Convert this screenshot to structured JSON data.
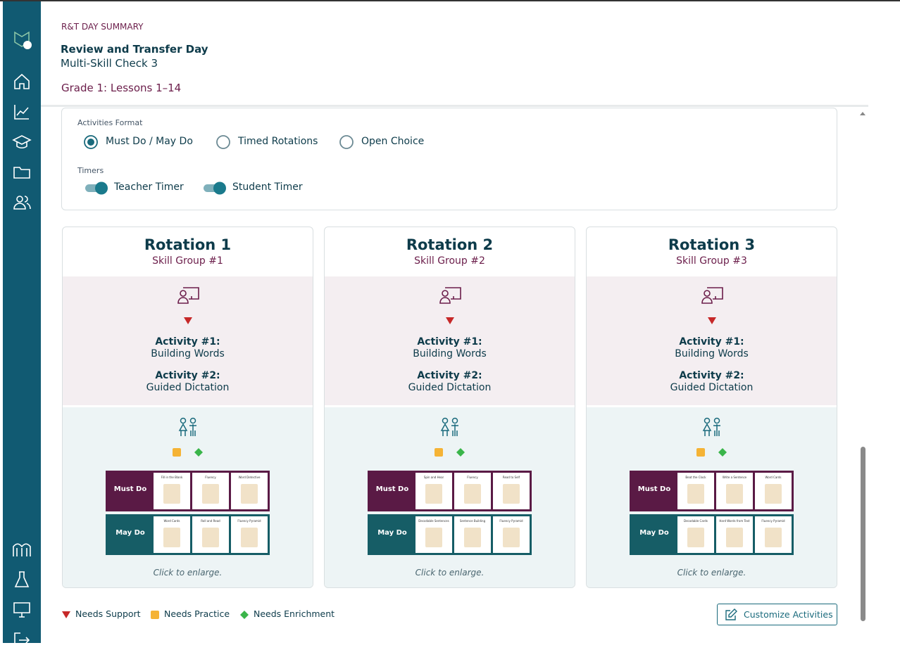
{
  "header": {
    "eyebrow": "R&T DAY SUMMARY",
    "title": "Review and Transfer Day",
    "subtitle": "Multi-Skill Check 3",
    "grade": "Grade 1: Lessons 1–14"
  },
  "activities_format": {
    "label": "Activities Format",
    "options": [
      {
        "label": "Must Do / May Do",
        "selected": true
      },
      {
        "label": "Timed Rotations",
        "selected": false
      },
      {
        "label": "Open Choice",
        "selected": false
      }
    ]
  },
  "timers": {
    "label": "Timers",
    "items": [
      {
        "label": "Teacher Timer",
        "on": true
      },
      {
        "label": "Student Timer",
        "on": true
      }
    ]
  },
  "rotations": [
    {
      "title": "Rotation 1",
      "group": "Skill Group #1",
      "activities": [
        {
          "label": "Activity #1:",
          "name": "Building Words"
        },
        {
          "label": "Activity #2:",
          "name": "Guided Dictation"
        }
      ],
      "must_do": {
        "label": "Must Do",
        "cards": [
          "Fill in the Blank",
          "Fluency",
          "Word Detective"
        ]
      },
      "may_do": {
        "label": "May Do",
        "cards": [
          "Word Cards",
          "Roll and Read",
          "Fluency Pyramid"
        ]
      },
      "enlarge": "Click to enlarge."
    },
    {
      "title": "Rotation 2",
      "group": "Skill Group #2",
      "activities": [
        {
          "label": "Activity #1:",
          "name": "Building Words"
        },
        {
          "label": "Activity #2:",
          "name": "Guided Dictation"
        }
      ],
      "must_do": {
        "label": "Must Do",
        "cards": [
          "Spin and Hear",
          "Fluency",
          "Read to Self"
        ]
      },
      "may_do": {
        "label": "May Do",
        "cards": [
          "Decodable Sentences",
          "Sentence Building",
          "Fluency Pyramid"
        ]
      },
      "enlarge": "Click to enlarge."
    },
    {
      "title": "Rotation 3",
      "group": "Skill Group #3",
      "activities": [
        {
          "label": "Activity #1:",
          "name": "Building Words"
        },
        {
          "label": "Activity #2:",
          "name": "Guided Dictation"
        }
      ],
      "must_do": {
        "label": "Must Do",
        "cards": [
          "Beat the Clock",
          "Write a Sentence",
          "Word Cards"
        ]
      },
      "may_do": {
        "label": "May Do",
        "cards": [
          "Decodable Cards",
          "Hard Words from Text",
          "Fluency Pyramid"
        ]
      },
      "enlarge": "Click to enlarge."
    }
  ],
  "legend": [
    "Needs Support",
    "Needs Practice",
    "Needs Enrichment"
  ],
  "button": "Customize Activities"
}
